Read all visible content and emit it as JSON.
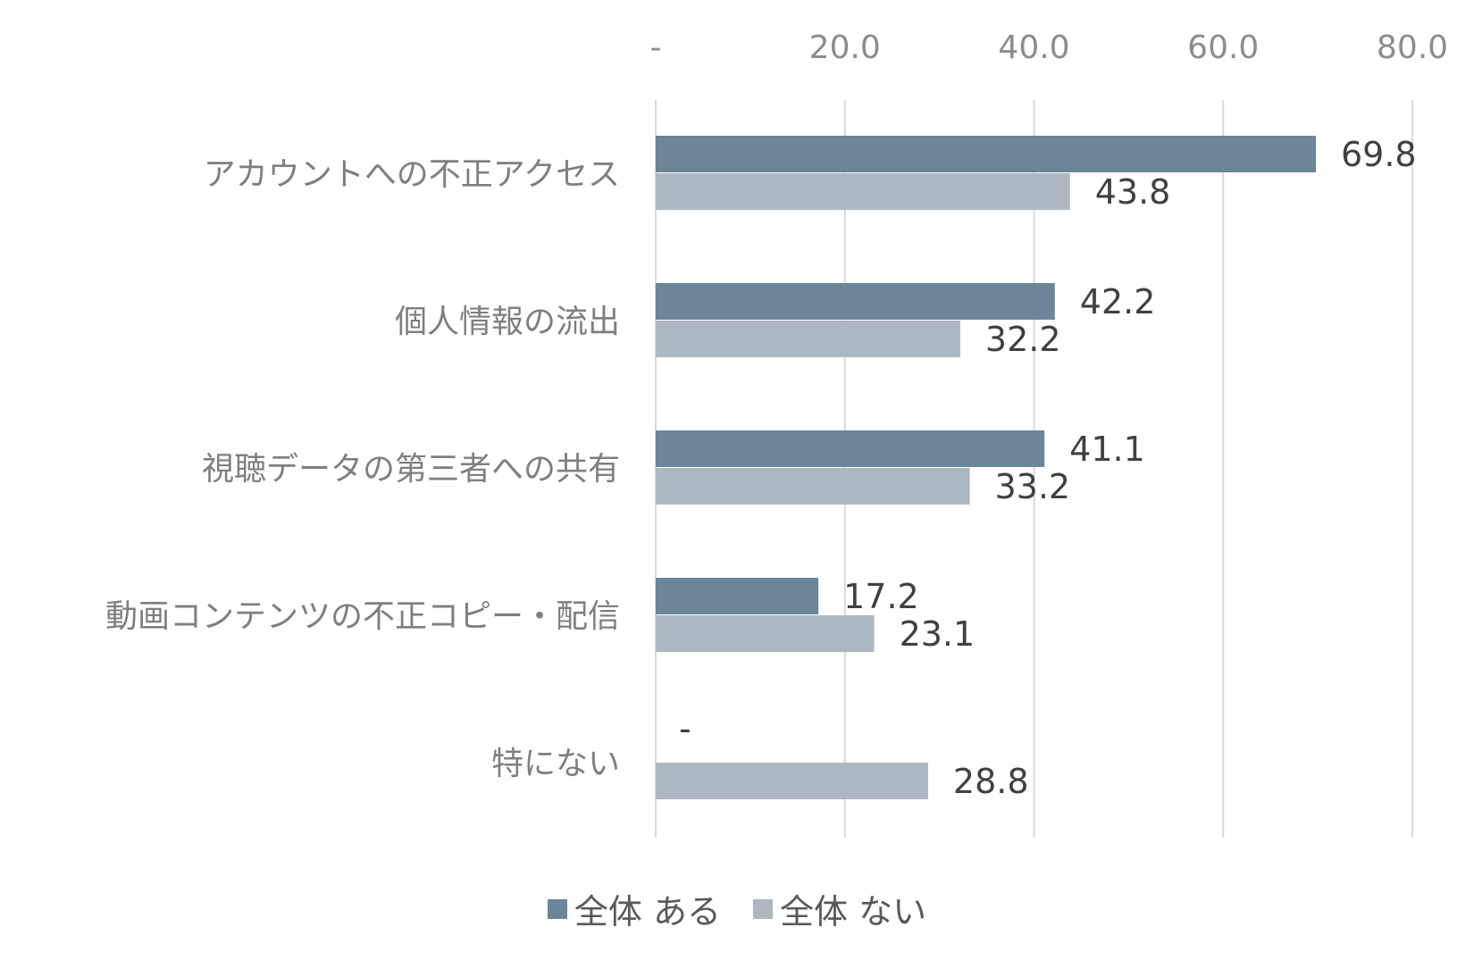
{
  "chart_data": {
    "type": "bar",
    "orientation": "horizontal",
    "categories": [
      "アカウントへの不正アクセス",
      "個人情報の流出",
      "視聴データの第三者への共有",
      "動画コンテンツの不正コピー・配信",
      "特にない"
    ],
    "series": [
      {
        "name": "全体 ある",
        "values": [
          69.8,
          42.2,
          41.1,
          17.2,
          null
        ],
        "labels": [
          "69.8",
          "42.2",
          "41.1",
          "17.2",
          "-"
        ],
        "color": "#6b8599"
      },
      {
        "name": "全体 ない",
        "values": [
          43.8,
          32.2,
          33.2,
          23.1,
          28.8
        ],
        "labels": [
          "43.8",
          "32.2",
          "33.2",
          "23.1",
          "28.8"
        ],
        "color": "#adb7c2"
      }
    ],
    "xlim": [
      0,
      80
    ],
    "xticks": [
      0,
      20,
      40,
      60,
      80
    ],
    "xtick_labels": [
      "-",
      "20.0",
      "40.0",
      "60.0",
      "80.0"
    ],
    "axis_position": "top",
    "grid": true,
    "legend": "bottom"
  }
}
